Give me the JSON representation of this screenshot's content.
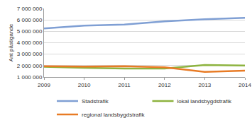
{
  "chart_data": {
    "type": "line",
    "y_label": "Ant påstigande",
    "x": [
      2009,
      2010,
      2011,
      2012,
      2013,
      2014
    ],
    "xlim": [
      2009,
      2014
    ],
    "xticks": [
      2009,
      2010,
      2011,
      2012,
      2013,
      2014
    ],
    "ylim": [
      1000000,
      7000000
    ],
    "yticks": [
      {
        "value": 1000000,
        "label": "1 000 000"
      },
      {
        "value": 2000000,
        "label": "2 000 000"
      },
      {
        "value": 3000000,
        "label": "3 000 000"
      },
      {
        "value": 4000000,
        "label": "4 000 000"
      },
      {
        "value": 5000000,
        "label": "5 000 000"
      },
      {
        "value": 6000000,
        "label": "6 000 000"
      },
      {
        "value": 7000000,
        "label": "7 000 000"
      }
    ],
    "grid": true,
    "legend": "bottom",
    "series": [
      {
        "name": "Stadstrafik",
        "color": "#7f9fd4",
        "values": [
          5250000,
          5500000,
          5600000,
          5870000,
          6050000,
          6180000
        ]
      },
      {
        "name": "lokal landsbygdstrafik",
        "color": "#8db33f",
        "values": [
          1900000,
          1800000,
          1750000,
          1750000,
          2050000,
          2000000
        ]
      },
      {
        "name": "regional landsbygdstrafik",
        "color": "#e87b25",
        "values": [
          1950000,
          1920000,
          1950000,
          1850000,
          1450000,
          1550000
        ]
      }
    ]
  }
}
